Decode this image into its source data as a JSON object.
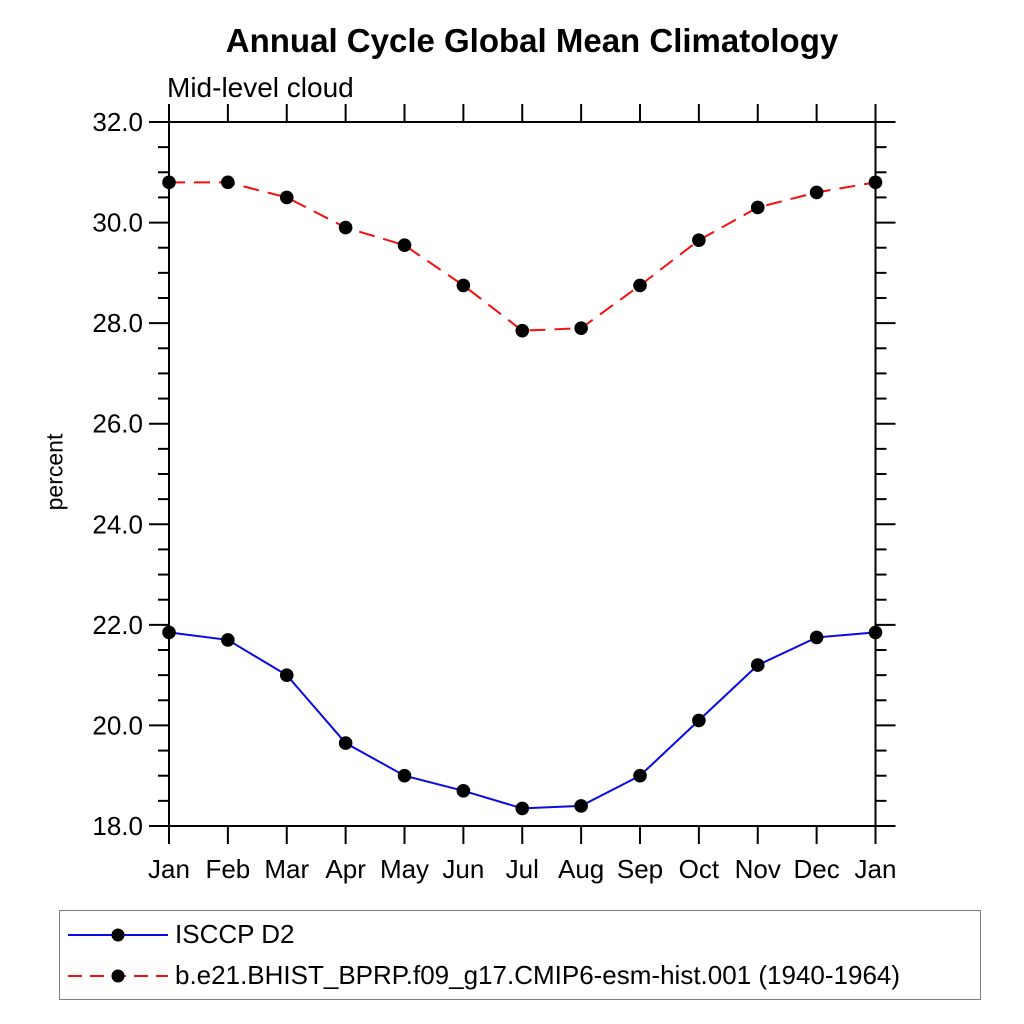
{
  "chart_data": {
    "type": "line",
    "title": "Annual Cycle Global Mean Climatology",
    "subtitle": "Mid-level cloud",
    "xlabel": "",
    "ylabel": "percent",
    "categories": [
      "Jan",
      "Feb",
      "Mar",
      "Apr",
      "May",
      "Jun",
      "Jul",
      "Aug",
      "Sep",
      "Oct",
      "Nov",
      "Dec",
      "Jan"
    ],
    "ylim": [
      18.0,
      32.0
    ],
    "ytick_major_step": 2.0,
    "ytick_minor_step": 0.5,
    "ytick_labels": [
      "18.0",
      "20.0",
      "22.0",
      "24.0",
      "26.0",
      "28.0",
      "30.0",
      "32.0"
    ],
    "grid": false,
    "legend_position": "bottom-left-box",
    "marker": "filled-circle",
    "marker_color": "#000000",
    "axis_color": "#000000",
    "series": [
      {
        "name": "ISCCP D2",
        "color": "#0a0ae6",
        "style": "solid",
        "values": [
          21.85,
          21.7,
          21.0,
          19.65,
          19.0,
          18.7,
          18.35,
          18.4,
          19.0,
          20.1,
          21.2,
          21.75,
          21.85
        ]
      },
      {
        "name": "b.e21.BHIST_BPRP.f09_g17.CMIP6-esm-hist.001 (1940-1964)",
        "color": "#f80d0d",
        "style": "dashed",
        "values": [
          30.8,
          30.8,
          30.5,
          29.9,
          29.55,
          28.75,
          27.85,
          27.9,
          28.75,
          29.65,
          30.3,
          30.6,
          30.8
        ]
      }
    ]
  }
}
